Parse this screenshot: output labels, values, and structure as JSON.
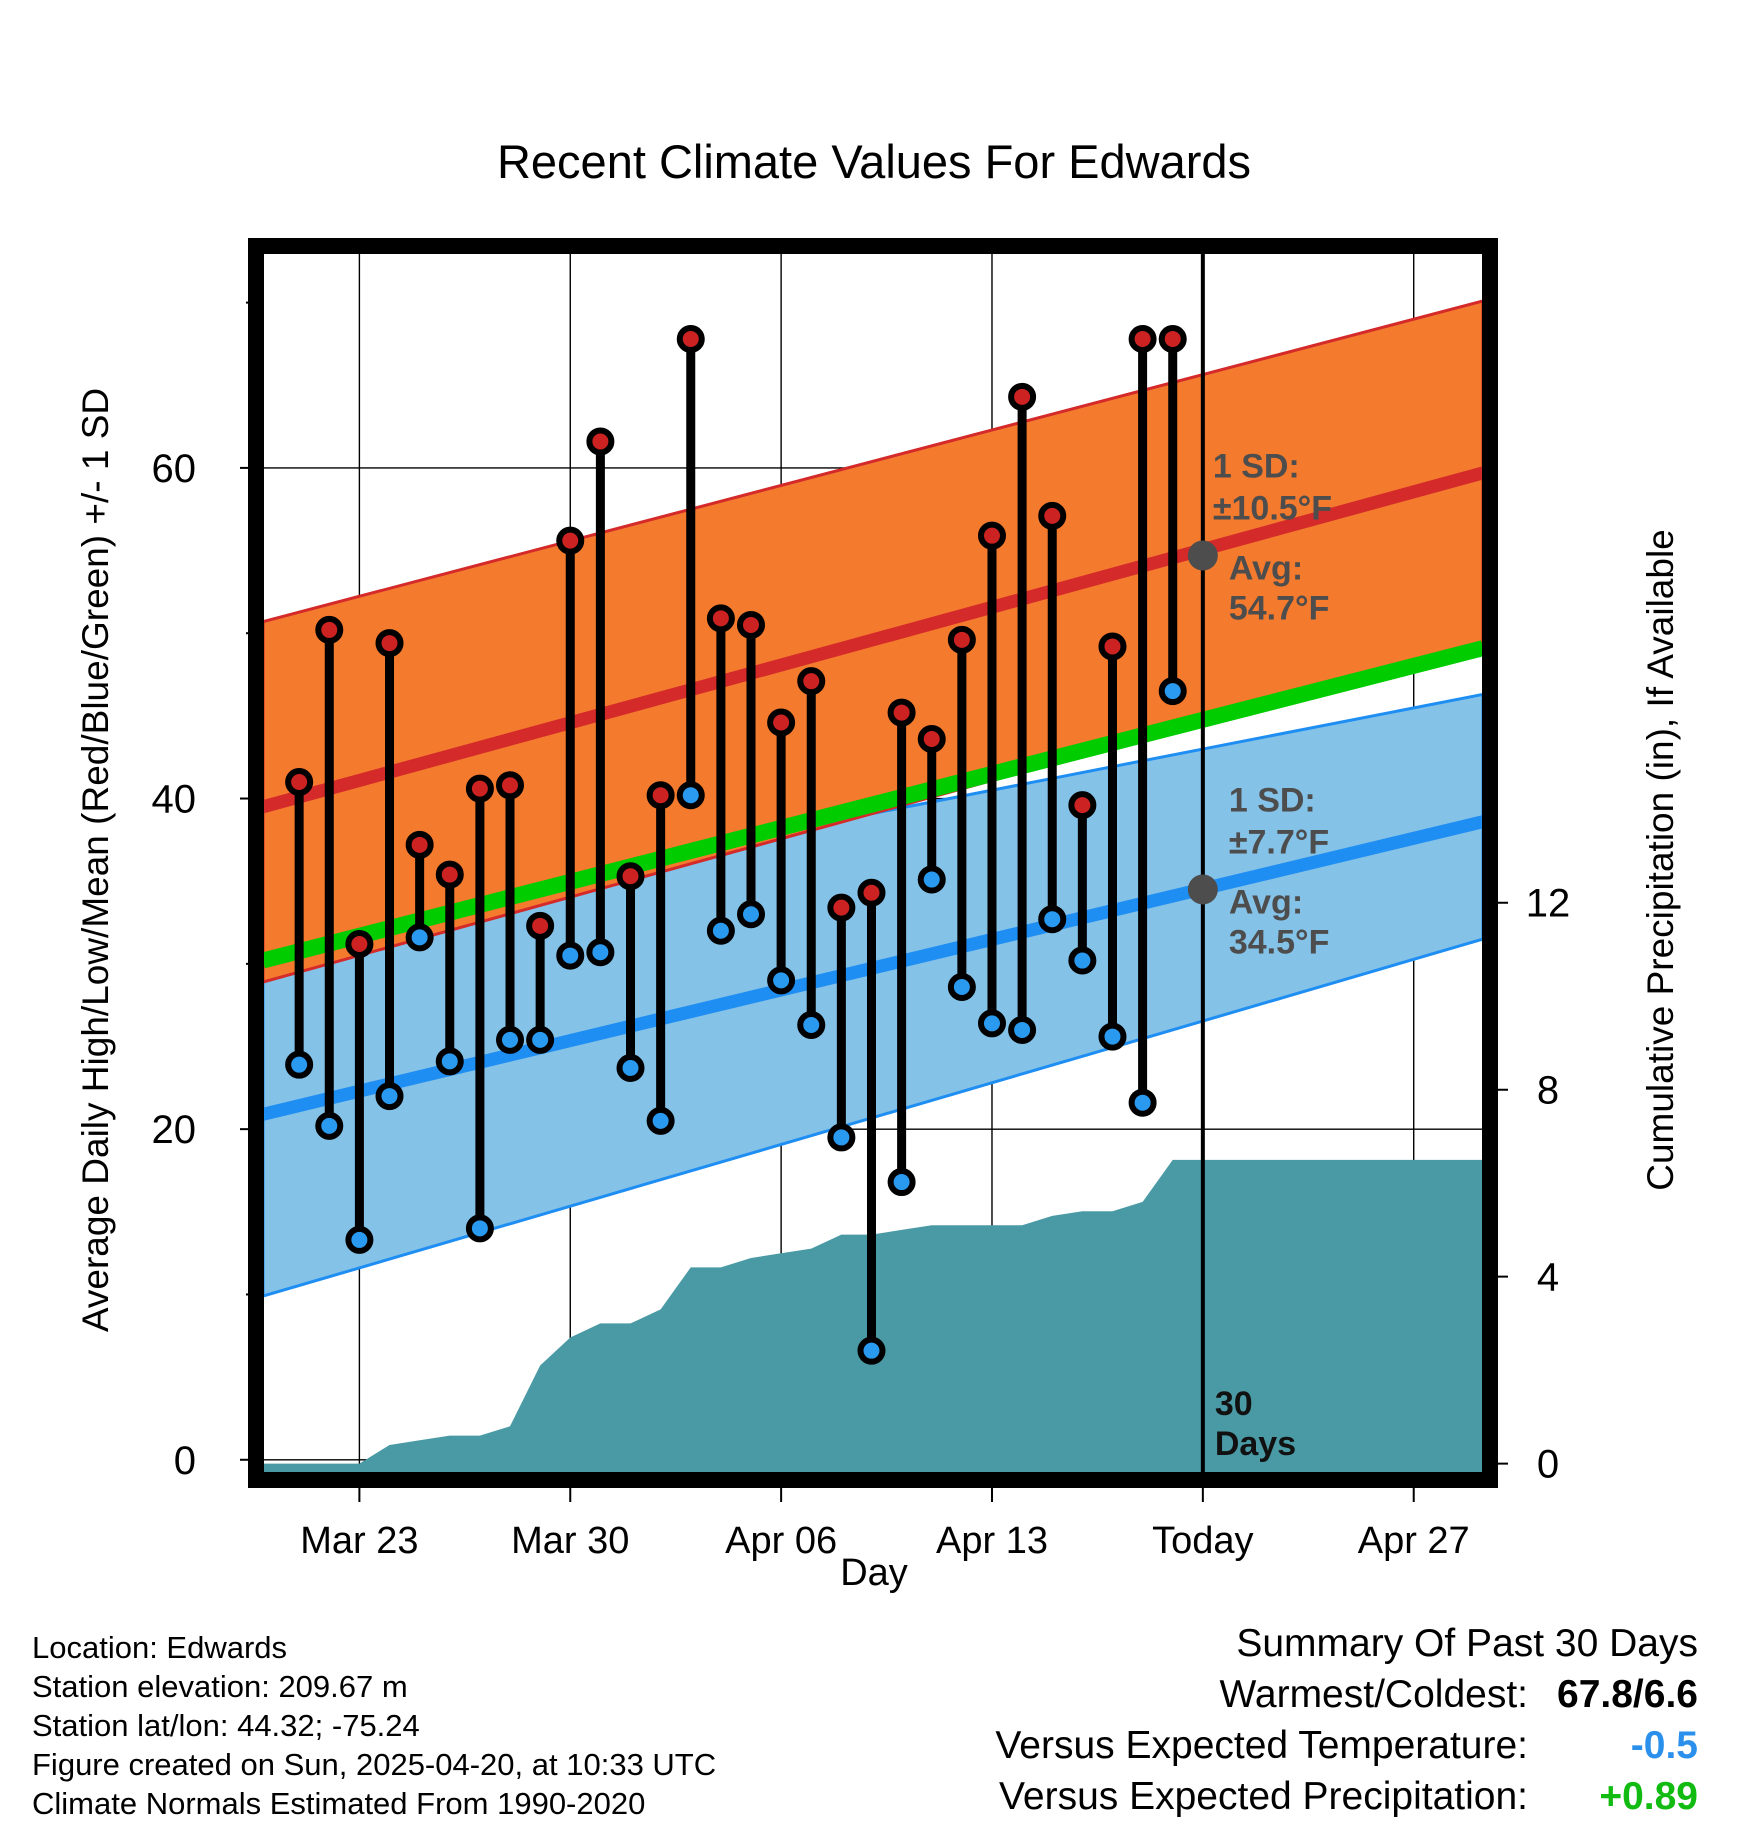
{
  "chart_data": {
    "type": "line",
    "title": "Recent Climate Values For Edwards",
    "xlabel": "Day",
    "ylabel": "Average Daily High/Low/Mean (Red/Blue/Green) +/- 1 SD",
    "y2label": "Cumulative Precipitation (in), If Available",
    "x_tick_labels": [
      "Mar 23",
      "Mar 30",
      "Apr 06",
      "Apr 13",
      "Today",
      "Apr 27"
    ],
    "x_tick_days": [
      23,
      30,
      37,
      44,
      51,
      58
    ],
    "xlim_days": [
      19.8,
      60.3
    ],
    "ylim": [
      -0.8,
      73
    ],
    "y_ticks": [
      0,
      20,
      40,
      60
    ],
    "y2lim": [
      -0.2,
      25.9
    ],
    "y2_ticks": [
      0,
      4,
      8,
      12
    ],
    "grid": true,
    "daily_highs_lows": {
      "days": [
        21,
        22,
        23,
        24,
        25,
        26,
        27,
        28,
        29,
        30,
        31,
        32,
        33,
        34,
        35,
        36,
        37,
        38,
        39,
        40,
        41,
        42,
        43,
        44,
        45,
        46,
        47,
        48,
        49,
        50
      ],
      "high": [
        41.0,
        50.2,
        31.2,
        49.4,
        37.2,
        35.4,
        40.6,
        40.8,
        32.3,
        55.6,
        61.6,
        35.3,
        40.2,
        67.8,
        50.9,
        50.5,
        44.6,
        47.1,
        33.4,
        34.3,
        45.2,
        43.6,
        49.6,
        55.9,
        64.3,
        57.1,
        39.6,
        49.2,
        67.8,
        67.8
      ],
      "low": [
        23.9,
        20.2,
        13.3,
        22.0,
        31.6,
        24.1,
        14.0,
        25.4,
        25.4,
        30.5,
        30.7,
        23.7,
        20.5,
        40.2,
        32.0,
        33.0,
        29.0,
        26.3,
        19.5,
        6.6,
        16.8,
        35.1,
        28.6,
        26.4,
        26.0,
        32.7,
        30.2,
        25.6,
        21.6,
        46.5
      ]
    },
    "normals": {
      "days": [
        19.8,
        60.3
      ],
      "high_avg": [
        39.5,
        59.7
      ],
      "high_sd_band": [
        [
          28.9,
          50.7
        ],
        [
          49.3,
          70.1
        ]
      ],
      "low_avg": [
        20.9,
        38.6
      ],
      "low_sd_band": [
        [
          9.9,
          31.9
        ],
        [
          31.5,
          46.3
        ]
      ],
      "mean_avg": [
        30.2,
        49.1
      ]
    },
    "precip_cumulative": {
      "days": [
        19.8,
        22,
        23,
        24,
        25,
        26,
        27,
        28,
        29,
        30,
        31,
        32,
        33,
        34,
        35,
        36,
        37,
        38,
        39,
        40,
        41,
        42,
        43,
        44,
        45,
        46,
        47,
        48,
        49,
        50,
        51,
        60.3
      ],
      "values": [
        0,
        0,
        0,
        0.4,
        0.5,
        0.6,
        0.6,
        0.8,
        2.1,
        2.7,
        3.0,
        3.0,
        3.3,
        4.2,
        4.2,
        4.4,
        4.5,
        4.6,
        4.9,
        4.9,
        5.0,
        5.1,
        5.1,
        5.1,
        5.1,
        5.3,
        5.4,
        5.4,
        5.6,
        6.5,
        6.5,
        6.5
      ]
    },
    "annotations": {
      "high_sd": "1 SD:",
      "high_sd_val": "±10.5°F",
      "high_avg_label": "Avg:",
      "high_avg_val": "54.7°F",
      "high_avg_today": 54.7,
      "low_sd": "1 SD:",
      "low_sd_val": "±7.7°F",
      "low_avg_label": "Avg:",
      "low_avg_val": "34.5°F",
      "low_avg_today": 34.5,
      "window_label_1": "30",
      "window_label_2": "Days"
    },
    "colors": {
      "high_band": "#f47a2e",
      "high_line": "#d42a2a",
      "low_band": "#84c2e8",
      "low_line": "#1f8ef2",
      "mean_line": "#00cc00",
      "precip": "#4a9aa5",
      "high_dot": "#cc2222",
      "low_dot": "#2a9af0",
      "annotation": "#4d4d4d"
    }
  },
  "footer": {
    "location": "Location: Edwards",
    "elevation": "Station elevation: 209.67 m",
    "latlon": "Station lat/lon: 44.32; -75.24",
    "created": "Figure created on Sun, 2025-04-20, at 10:33 UTC",
    "normals": "Climate Normals Estimated From 1990-2020"
  },
  "summary": {
    "title": "Summary Of Past 30 Days",
    "warm_cold_label": "Warmest/Coldest:",
    "warm_cold_value": "67.8/6.6",
    "temp_label": "Versus Expected Temperature:",
    "temp_value": "-0.5",
    "temp_color": "#2a90ec",
    "precip_label": "Versus Expected Precipitation:",
    "precip_value": "+0.89",
    "precip_color": "#11bb11"
  }
}
